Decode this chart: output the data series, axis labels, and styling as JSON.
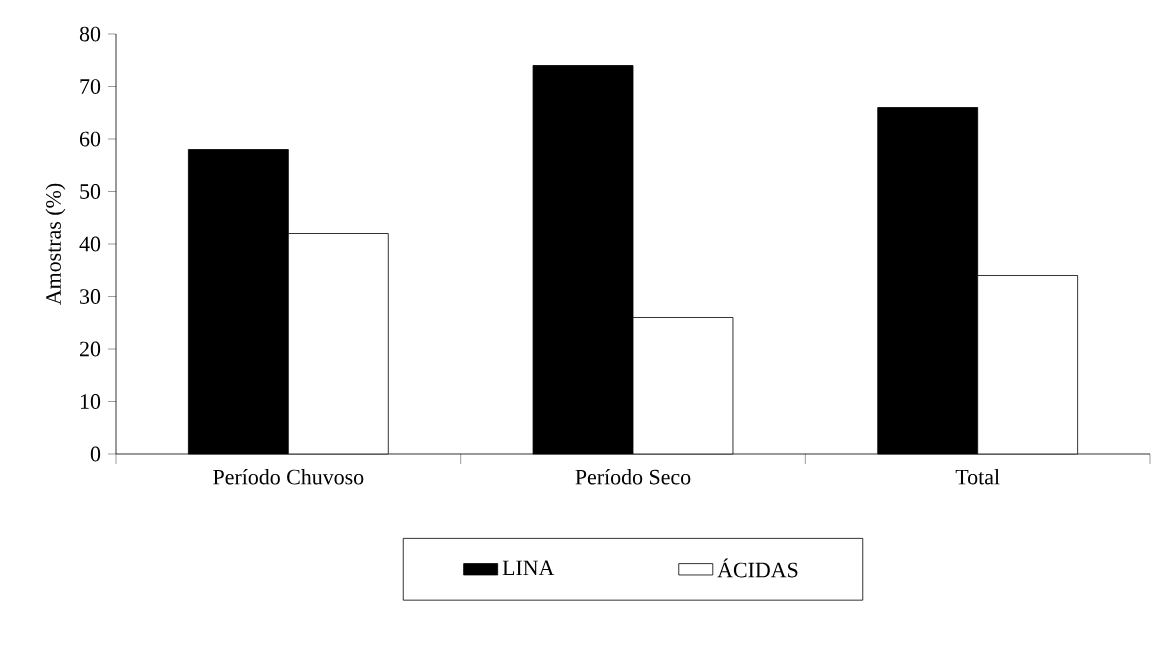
{
  "chart_data": {
    "type": "bar",
    "ylabel": "Amostras (%)",
    "categories": [
      "Período Chuvoso",
      "Período Seco",
      "Total"
    ],
    "series": [
      {
        "name": "LINA",
        "color": "#000000",
        "values": [
          58,
          74,
          66
        ]
      },
      {
        "name": "ÁCIDAS",
        "color": "#000000",
        "values": [
          42,
          26,
          34
        ]
      }
    ],
    "ylim": [
      0,
      80
    ],
    "yticks": [
      0,
      10,
      20,
      30,
      40,
      50,
      60,
      70,
      80
    ],
    "grid": false,
    "legend": "bottom"
  }
}
